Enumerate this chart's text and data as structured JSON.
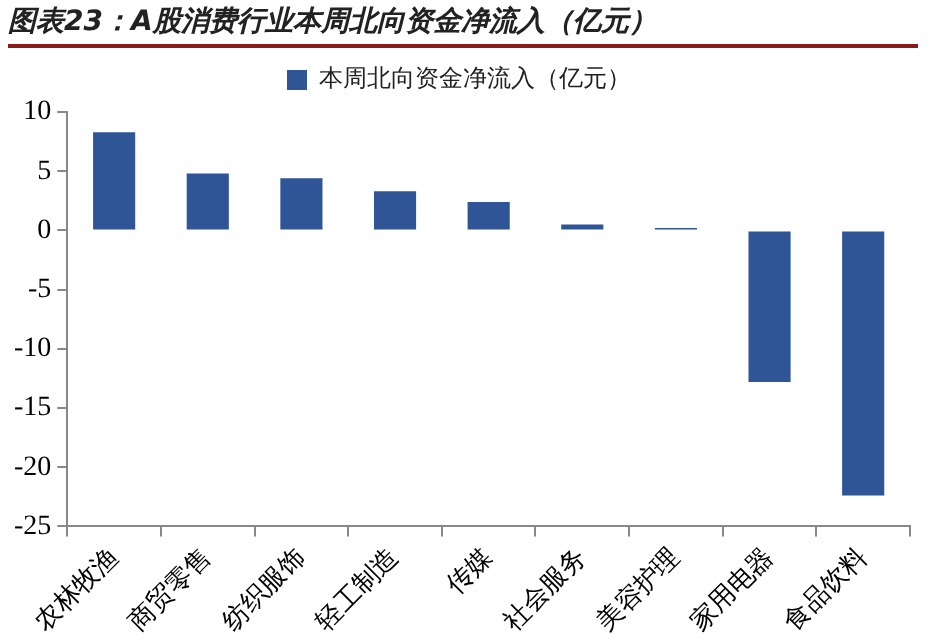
{
  "chart_data": {
    "type": "bar",
    "title": "图表23：A股消费行业本周北向资金净流入（亿元）",
    "categories": [
      "农林牧渔",
      "商贸零售",
      "纺织服饰",
      "轻工制造",
      "传媒",
      "社会服务",
      "美容护理",
      "家用电器",
      "食品饮料"
    ],
    "series": [
      {
        "name": "本周北向资金净流入（亿元）",
        "color": "#2f5597",
        "values": [
          8.3,
          4.8,
          4.4,
          3.3,
          2.4,
          0.5,
          0.2,
          -12.8,
          -22.4
        ]
      }
    ],
    "ylim": [
      -25,
      10
    ],
    "yticks": [
      -25,
      -20,
      -15,
      -10,
      -5,
      0,
      5,
      10
    ],
    "grid": false,
    "legend": "top"
  }
}
